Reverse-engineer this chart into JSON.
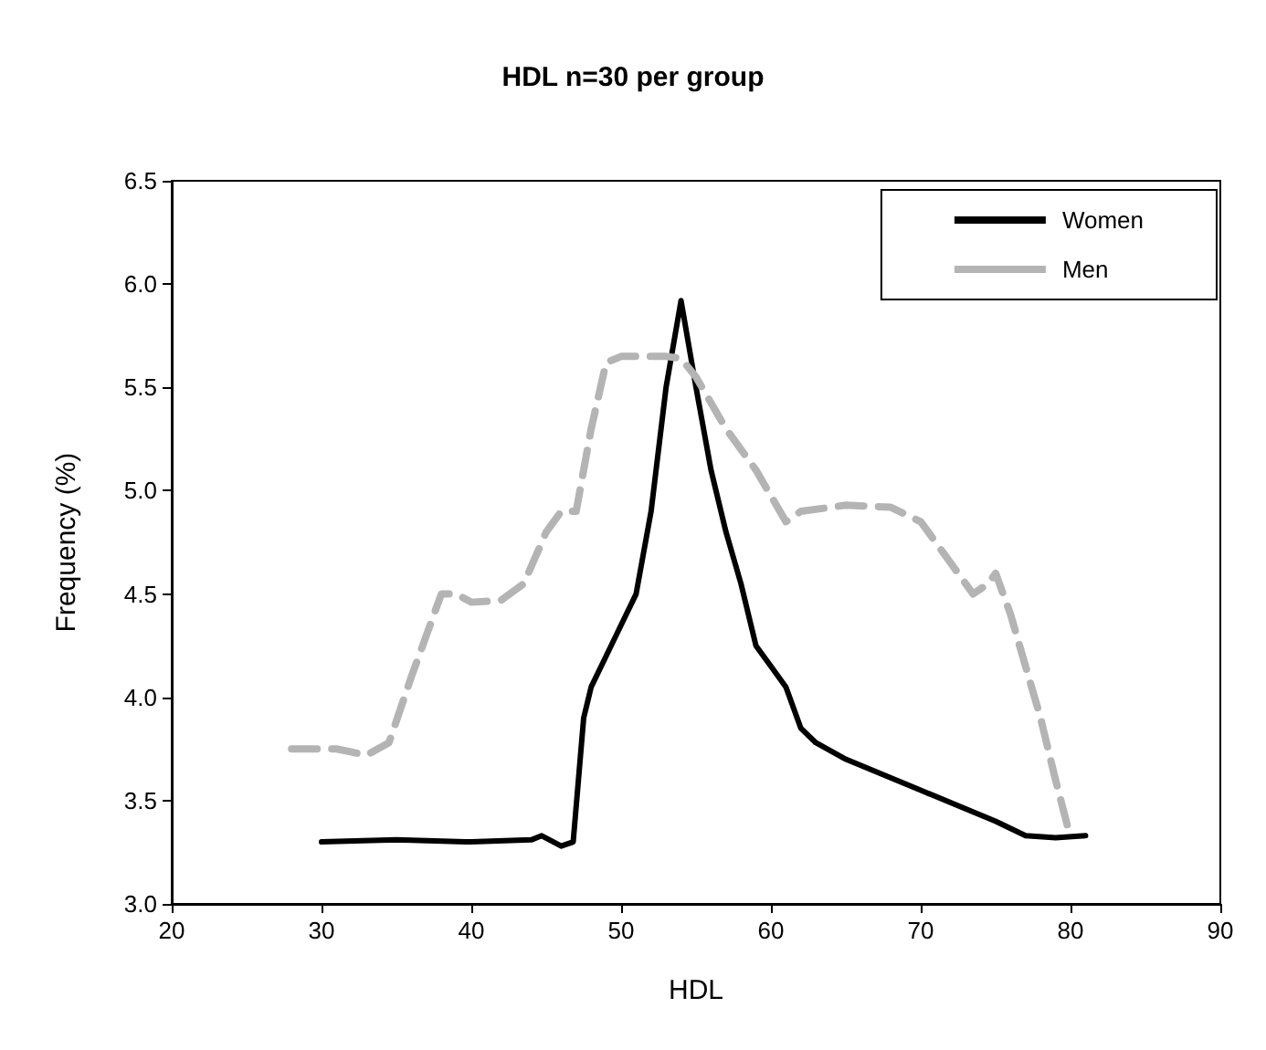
{
  "chart_data": {
    "type": "line",
    "title": "HDL n=30 per group",
    "xlabel": "HDL",
    "ylabel": "Frequency (%)",
    "xlim": [
      20,
      90
    ],
    "xticks": [
      20,
      30,
      40,
      50,
      60,
      70,
      80,
      90
    ],
    "ylim": [
      3.0,
      6.5
    ],
    "yticks": [
      {
        "value": 3.0,
        "label": "3.0"
      },
      {
        "value": 3.5,
        "label": "3.5"
      },
      {
        "value": 4.0,
        "label": "4.0"
      },
      {
        "value": 4.5,
        "label": "4.5"
      },
      {
        "value": 5.0,
        "label": "5.0"
      },
      {
        "value": 5.5,
        "label": "5.5"
      },
      {
        "value": 6.0,
        "label": "6.0"
      },
      {
        "value": 6.5,
        "label": "6.5"
      }
    ],
    "grid": false,
    "legend": "top right",
    "marker": "none",
    "series": [
      {
        "name": "Women",
        "color": "#000000",
        "line_style": "solid",
        "x": [
          30,
          35,
          40,
          44,
          44.7,
          46,
          46.8,
          47.5,
          48,
          49,
          50,
          51,
          52,
          53,
          54,
          55,
          56,
          57,
          58,
          59,
          60,
          61,
          62,
          63,
          65,
          70,
          75,
          77,
          79,
          81
        ],
        "values": [
          3.3,
          3.31,
          3.3,
          3.31,
          3.33,
          3.28,
          3.3,
          3.9,
          4.05,
          4.2,
          4.35,
          4.5,
          4.9,
          5.5,
          5.92,
          5.5,
          5.1,
          4.8,
          4.55,
          4.25,
          4.15,
          4.05,
          3.85,
          3.78,
          3.7,
          3.55,
          3.4,
          3.33,
          3.32,
          3.33
        ]
      },
      {
        "name": "Men",
        "color": "#b4b4b4",
        "line_style": "dashed",
        "x": [
          28,
          31,
          33,
          34.5,
          36,
          38,
          39,
          40,
          42,
          43.5,
          45,
          46,
          47,
          48,
          49,
          50,
          53,
          54,
          55,
          57,
          59,
          61,
          62,
          65,
          68,
          70,
          72,
          73.5,
          74.5,
          75,
          76,
          78,
          79,
          80
        ],
        "values": [
          3.75,
          3.75,
          3.72,
          3.78,
          4.1,
          4.5,
          4.5,
          4.46,
          4.47,
          4.55,
          4.8,
          4.9,
          4.9,
          5.3,
          5.62,
          5.65,
          5.65,
          5.64,
          5.55,
          5.3,
          5.1,
          4.85,
          4.9,
          4.93,
          4.92,
          4.85,
          4.65,
          4.5,
          4.55,
          4.6,
          4.4,
          3.9,
          3.6,
          3.32
        ]
      }
    ]
  }
}
